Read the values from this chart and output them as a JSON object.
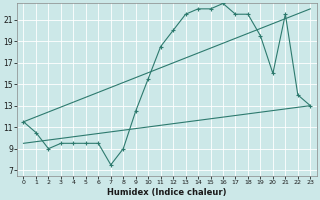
{
  "xlabel": "Humidex (Indice chaleur)",
  "xlim": [
    -0.5,
    23.5
  ],
  "ylim": [
    6.5,
    22.5
  ],
  "yticks": [
    7,
    9,
    11,
    13,
    15,
    17,
    19,
    21
  ],
  "xticks": [
    0,
    1,
    2,
    3,
    4,
    5,
    6,
    7,
    8,
    9,
    10,
    11,
    12,
    13,
    14,
    15,
    16,
    17,
    18,
    19,
    20,
    21,
    22,
    23
  ],
  "bg_color": "#cce8e8",
  "line_color": "#2d7a6e",
  "grid_color": "#b8d8d8",
  "line1_x": [
    0,
    1,
    2,
    3,
    4,
    5,
    6,
    7,
    8,
    9,
    10,
    11,
    12,
    13,
    14,
    15,
    16,
    17,
    18,
    19,
    20,
    21,
    22,
    23
  ],
  "line1_y": [
    11.5,
    10.5,
    9.0,
    9.5,
    9.5,
    9.5,
    9.5,
    7.5,
    9.0,
    12.5,
    15.5,
    18.5,
    20.0,
    21.5,
    22.0,
    22.0,
    22.5,
    21.5,
    21.5,
    19.5,
    16.0,
    21.5,
    14.0,
    13.0
  ],
  "line2_x": [
    0,
    23
  ],
  "line2_y": [
    9.5,
    13.0
  ],
  "line3_x": [
    0,
    23
  ],
  "line3_y": [
    11.5,
    22.0
  ],
  "marker": "+",
  "markersize": 3.5,
  "linewidth": 0.8
}
